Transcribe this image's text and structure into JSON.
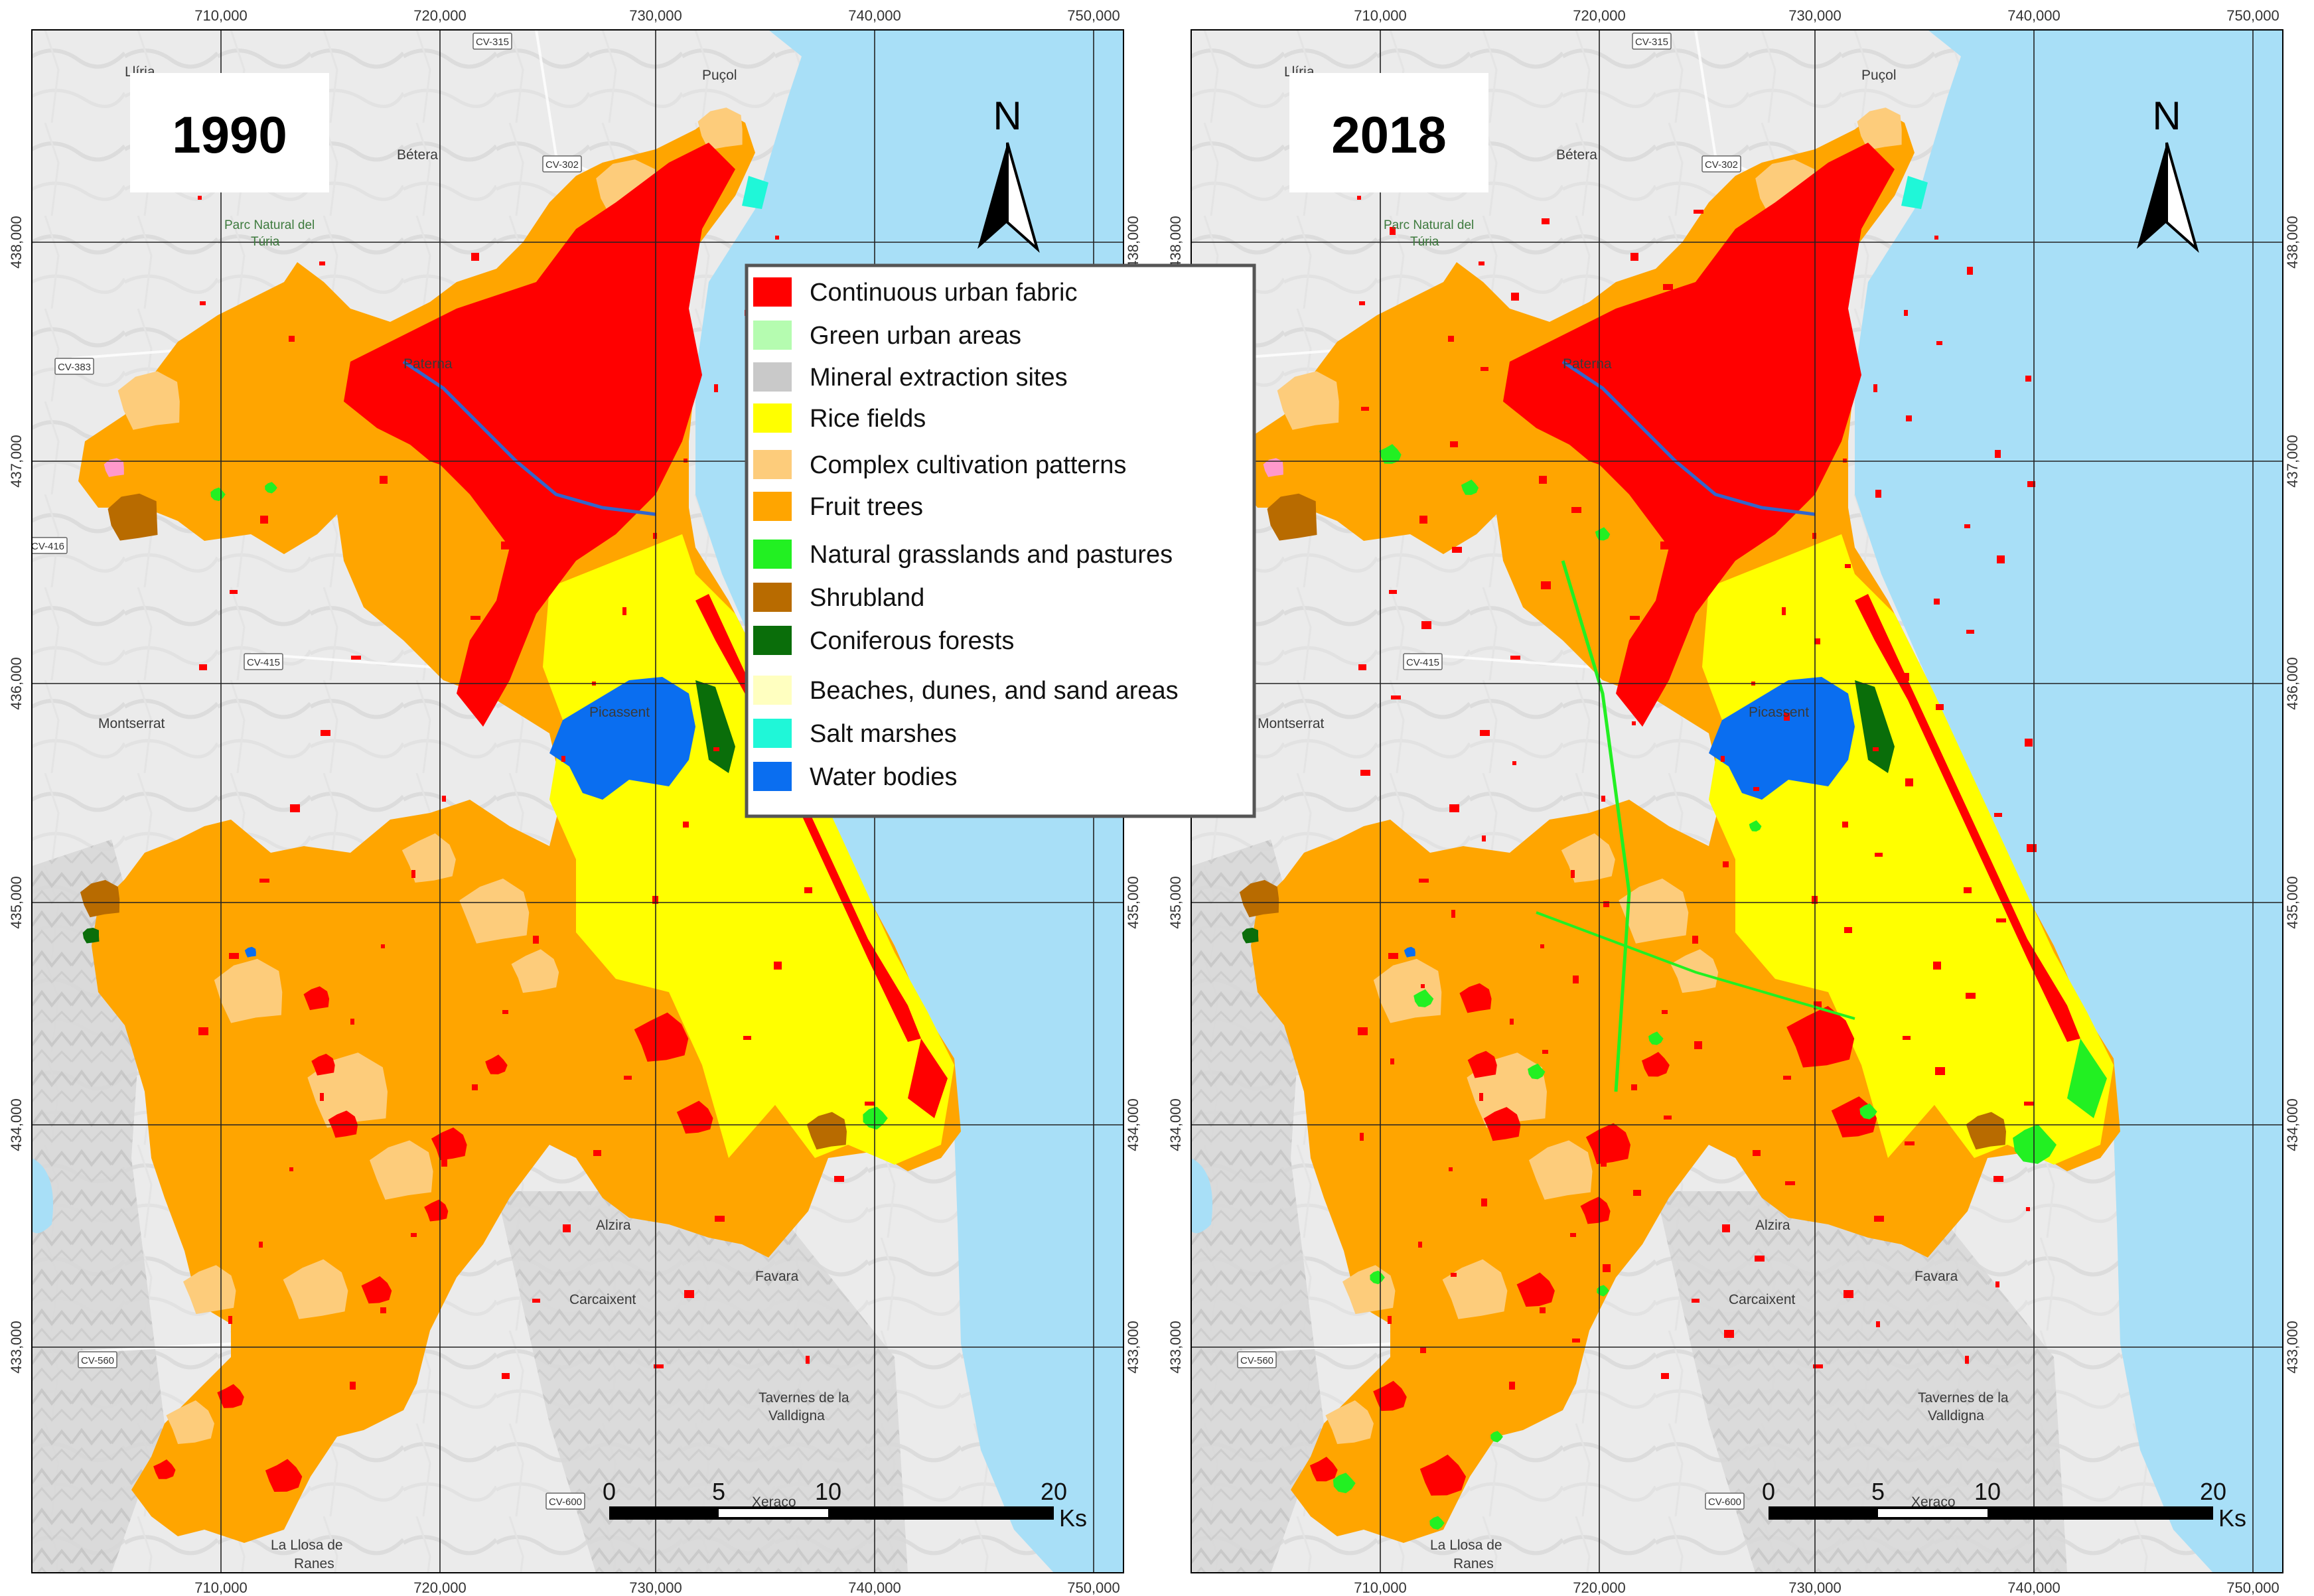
{
  "panels": [
    {
      "id": "p1990",
      "year_label": "1990"
    },
    {
      "id": "p2018",
      "year_label": "2018"
    }
  ],
  "north_label": "N",
  "x_ticks": [
    "710,000",
    "720,000",
    "730,000",
    "740,000",
    "750,000"
  ],
  "y_ticks": [
    "438,000",
    "437,000",
    "436,000",
    "435,000",
    "434,000",
    "433,000"
  ],
  "places": [
    {
      "name": "Llíria",
      "key": "lliria"
    },
    {
      "name": "Puçol",
      "key": "pucol"
    },
    {
      "name": "Bétera",
      "key": "betera"
    },
    {
      "name": "Parc Natural del",
      "key": "parc1"
    },
    {
      "name": "Túria",
      "key": "parc2"
    },
    {
      "name": "Paterna",
      "key": "paterna"
    },
    {
      "name": "Montserrat",
      "key": "montserrat"
    },
    {
      "name": "Picassent",
      "key": "picassent"
    },
    {
      "name": "Alzira",
      "key": "alzira"
    },
    {
      "name": "Carcaixent",
      "key": "carcaixent"
    },
    {
      "name": "Favara",
      "key": "favara"
    },
    {
      "name": "Tavernes de la",
      "key": "tavernes1"
    },
    {
      "name": "Valldigna",
      "key": "tavernes2"
    },
    {
      "name": "Xeraco",
      "key": "xeraco"
    },
    {
      "name": "La Llosa de",
      "key": "llosa1"
    },
    {
      "name": "Ranes",
      "key": "llosa2"
    }
  ],
  "roads": [
    "CV-315",
    "CV-302",
    "CV-383",
    "CV-416",
    "CV-415",
    "CV-560",
    "CV-600"
  ],
  "legend": [
    {
      "label": "Continuous urban fabric",
      "color": "#ff0000"
    },
    {
      "label": "Green urban areas",
      "color": "#b5fcb0"
    },
    {
      "label": "Mineral extraction sites",
      "color": "#c9c9c9"
    },
    {
      "label": "Rice fields",
      "color": "#ffff00"
    },
    {
      "label": "Complex cultivation patterns",
      "color": "#fdcc7b"
    },
    {
      "label": "Fruit trees",
      "color": "#ffa500"
    },
    {
      "label": "Natural grasslands and pastures",
      "color": "#22f022"
    },
    {
      "label": "Shrubland",
      "color": "#b86b00"
    },
    {
      "label": "Coniferous forests",
      "color": "#0a6e0a"
    },
    {
      "label": "Beaches, dunes, and sand areas",
      "color": "#ffffc0"
    },
    {
      "label": "Salt marshes",
      "color": "#1ff7d8"
    },
    {
      "label": "Water bodies",
      "color": "#0a6ef0"
    }
  ],
  "scale_bar": {
    "ticks": [
      "0",
      "5",
      "10",
      "20"
    ],
    "unit": "Ks"
  },
  "colors": {
    "sea": "#a8dff7",
    "land": "#ececec",
    "grid": "#222222",
    "river": "#3366cc"
  }
}
